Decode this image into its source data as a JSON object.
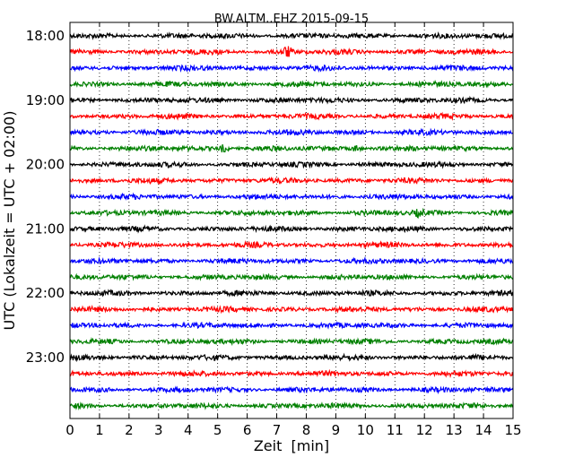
{
  "chart_data": {
    "type": "line",
    "title": "BW.ALTM..EHZ 2015-09-15",
    "xlabel": "Zeit  [min]",
    "ylabel": "UTC (Lokalzeit = UTC + 02:00)",
    "xlim": [
      0,
      15
    ],
    "x_ticks": [
      "0",
      "1",
      "2",
      "3",
      "4",
      "5",
      "6",
      "7",
      "8",
      "9",
      "10",
      "11",
      "12",
      "13",
      "14",
      "15"
    ],
    "y_ticks": [
      {
        "label": "18:00",
        "hour": 18.0
      },
      {
        "label": "19:00",
        "hour": 19.0
      },
      {
        "label": "20:00",
        "hour": 20.0
      },
      {
        "label": "21:00",
        "hour": 21.0
      },
      {
        "label": "22:00",
        "hour": 22.0
      },
      {
        "label": "23:00",
        "hour": 23.0
      }
    ],
    "trace_start_hours": [
      18.0,
      18.25,
      18.5,
      18.75,
      19.0,
      19.25,
      19.5,
      19.75,
      20.0,
      20.25,
      20.5,
      20.75,
      21.0,
      21.25,
      21.5,
      21.75,
      22.0,
      22.25,
      22.5,
      22.75,
      23.0,
      23.25,
      23.5,
      23.75
    ],
    "trace_colors": [
      "#000000",
      "#ff0000",
      "#0000ff",
      "#008000"
    ],
    "ylim_hours": [
      18.0,
      24.0
    ],
    "grid": "vertical-dotted",
    "events": [
      {
        "trace_hour": 18.25,
        "minute": 7.35,
        "amplitude": 2.2
      },
      {
        "trace_hour": 19.75,
        "minute": 5.2,
        "amplitude": 1.6
      },
      {
        "trace_hour": 19.75,
        "minute": 9.7,
        "amplitude": 1.3
      },
      {
        "trace_hour": 20.75,
        "minute": 11.8,
        "amplitude": 1.2
      }
    ]
  }
}
